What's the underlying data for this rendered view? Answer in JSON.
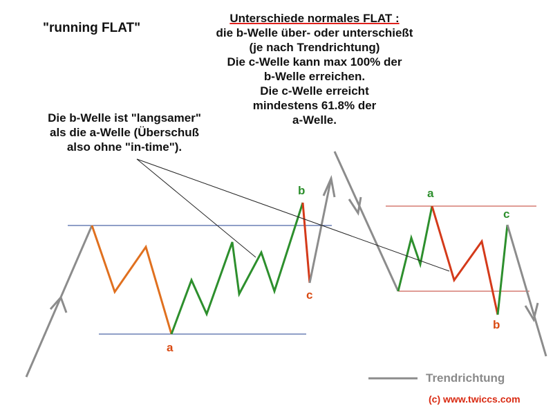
{
  "title": "\"running FLAT\"",
  "note_right": {
    "line1": "Unterschiede normales FLAT :",
    "line2": "die b-Welle über- oder unterschießt",
    "line3": "(je nach Trendrichtung)",
    "line4": "Die c-Welle kann max 100% der",
    "line5": "b-Welle erreichen.",
    "line6": "Die c-Welle erreicht",
    "line7": "mindestens 61.8% der",
    "line8": "a-Welle."
  },
  "note_left": {
    "line1": "Die b-Welle ist \"langsamer\"",
    "line2": "als die a-Welle (Überschuß",
    "line3": "also ohne \"in-time\")."
  },
  "running_flat_labels": {
    "a": "a",
    "b": "b",
    "c": "c"
  },
  "normal_flat_labels": {
    "a": "a",
    "b": "b",
    "c": "c"
  },
  "legend": {
    "label": "Trendrichtung"
  },
  "copyright": "(c)  www.twiccs.com",
  "colors": {
    "trend": "#8c8c8c",
    "wave_orange": "#e0701f",
    "wave_green": "#2d8f2d",
    "wave_red": "#d43a1a",
    "label_green": "#2d8f2d",
    "label_orange": "#d94a12",
    "channel_blue": "#1f3f8f",
    "channel_red": "#c0392b",
    "pointer": "#222222"
  }
}
